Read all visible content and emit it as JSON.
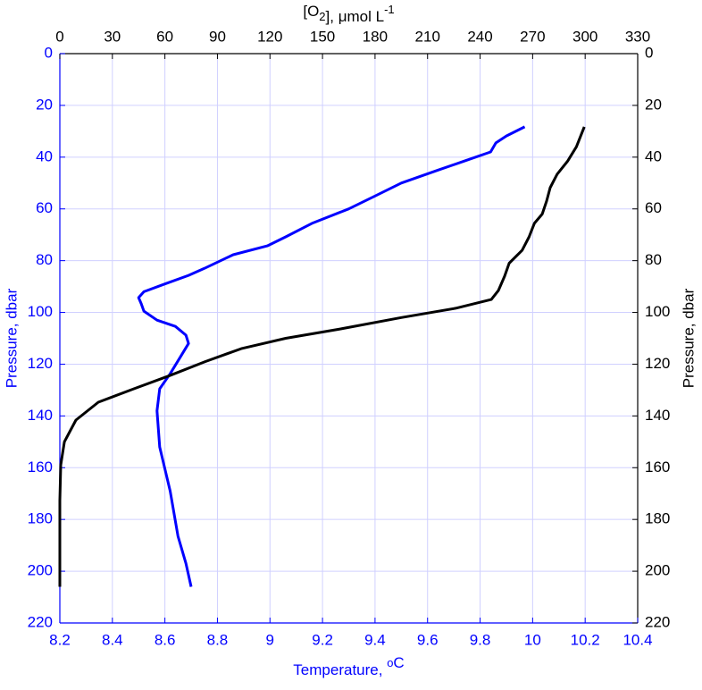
{
  "chart_data": {
    "type": "line",
    "xlabel": [
      "Temperature, ",
      {
        "sup": "o"
      },
      "C"
    ],
    "x2label": [
      "[O",
      {
        "sub": "2"
      },
      "], μmol L",
      {
        "sup": "-1"
      }
    ],
    "ylabel": "Pressure, dbar",
    "y2label": "Pressure, dbar",
    "xlim": [
      8.2,
      10.4
    ],
    "xticks": [
      8.2,
      8.4,
      8.6,
      8.8,
      9,
      9.2,
      9.4,
      9.6,
      9.8,
      10,
      10.2,
      10.4
    ],
    "x2lim": [
      0,
      330
    ],
    "x2ticks": [
      0,
      30,
      60,
      90,
      120,
      150,
      180,
      210,
      240,
      270,
      300,
      330
    ],
    "ylim": [
      0,
      220
    ],
    "yticks": [
      0,
      20,
      40,
      60,
      80,
      100,
      120,
      140,
      160,
      180,
      200,
      220
    ],
    "y_reversed": true,
    "grid": true,
    "x_axis_color": "#0000ff",
    "x2_axis_color": "#000000",
    "y_axis_color": "#0000ff",
    "y2_axis_color": "#000000",
    "series": [
      {
        "color": "#0000ff",
        "axis": "x",
        "x": [
          9.97,
          9.9,
          9.86,
          9.84,
          9.74,
          9.64,
          9.5,
          9.4,
          9.3,
          9.16,
          9.06,
          8.99,
          8.86,
          8.75,
          8.69,
          8.6,
          8.52,
          8.5,
          8.51,
          8.52,
          8.57,
          8.64,
          8.68,
          8.69,
          8.66,
          8.62,
          8.58,
          8.57,
          8.58,
          8.62,
          8.65,
          8.68,
          8.7
        ],
        "y": [
          28.3,
          31.8,
          34.5,
          38,
          41.5,
          45,
          50,
          55,
          60,
          65.6,
          70.8,
          74.3,
          77.7,
          83,
          85.7,
          89,
          92,
          94.3,
          96.7,
          99.5,
          103,
          105.4,
          108.8,
          112,
          117,
          123.7,
          129.5,
          138,
          152,
          169,
          186.5,
          197,
          206
        ]
      },
      {
        "color": "#000000",
        "axis": "x2",
        "x": [
          299.5,
          295,
          290,
          284,
          280,
          278,
          275.5,
          271,
          268,
          264,
          256.6,
          254,
          250.5,
          246.4,
          226,
          195,
          160,
          129,
          103.6,
          83,
          62.8,
          42.3,
          22,
          9.2,
          2.6,
          0.5,
          0,
          0
        ],
        "y": [
          28.3,
          36,
          41.5,
          46.6,
          51.8,
          57,
          62,
          65.6,
          70.8,
          76,
          81,
          86,
          91.5,
          95,
          98.4,
          102,
          106.4,
          110,
          114,
          119,
          124.4,
          129.5,
          134.7,
          141.6,
          150,
          159,
          172.7,
          206
        ]
      }
    ]
  }
}
